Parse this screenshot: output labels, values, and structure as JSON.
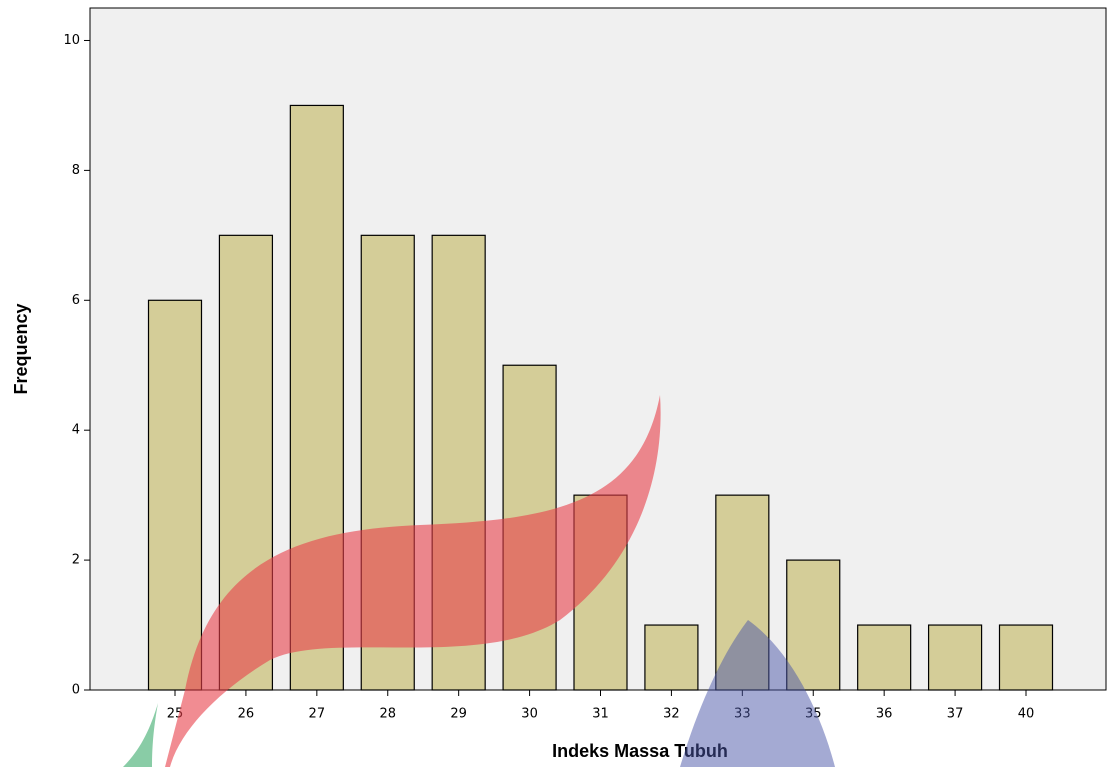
{
  "chart_data": {
    "type": "bar",
    "x_label": "Indeks Massa Tubuh",
    "y_label": "Frequency",
    "categories": [
      "25",
      "26",
      "27",
      "28",
      "29",
      "30",
      "31",
      "32",
      "33",
      "35",
      "36",
      "37",
      "40"
    ],
    "values": [
      6,
      7,
      9,
      7,
      7,
      5,
      3,
      1,
      3,
      2,
      1,
      1,
      1
    ],
    "color": "#d4cd98",
    "ylim": [
      0,
      10.5
    ],
    "yticks": [
      0,
      2,
      4,
      6,
      8,
      10
    ],
    "grid": false
  }
}
